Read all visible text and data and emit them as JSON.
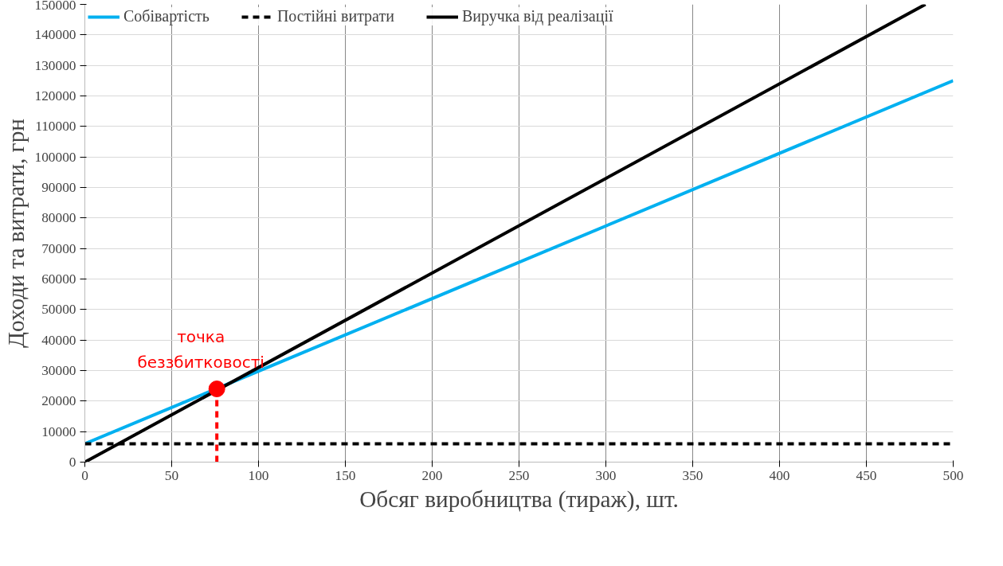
{
  "chart_data": {
    "type": "line",
    "xlabel": "Обсяг виробництва (тираж), шт.",
    "ylabel": "Доходи та витрати, грн",
    "xlim": [
      0,
      500
    ],
    "xticks": [
      0,
      50,
      100,
      150,
      200,
      250,
      300,
      350,
      400,
      450,
      500
    ],
    "ylim": [
      0,
      150000
    ],
    "yticks": [
      0,
      10000,
      20000,
      30000,
      40000,
      50000,
      60000,
      70000,
      80000,
      90000,
      100000,
      110000,
      120000,
      130000,
      140000,
      150000
    ],
    "grid": true,
    "legend": "top left",
    "marker": "none",
    "series": [
      {
        "name": "Собівартість",
        "color": "#00b0f0",
        "x": [
          0,
          500
        ],
        "values": [
          6000,
          125000
        ],
        "line_style": "solid"
      },
      {
        "name": "Постійні витрати",
        "color": "#000000",
        "x": [
          0,
          500
        ],
        "values": [
          6000,
          6000
        ],
        "line_style": "dashed"
      },
      {
        "name": "Виручка від реалізації",
        "color": "#000000",
        "x": [
          0,
          484
        ],
        "values": [
          0,
          150000
        ],
        "line_style": "solid"
      },
      {
        "type": "line",
        "color": "#ff0000",
        "x": [
          76,
          76
        ],
        "values": [
          0,
          24000
        ],
        "line_style": "dashed"
      },
      {
        "type": "scatter",
        "color": "#ff0000",
        "x": [
          76
        ],
        "values": [
          24000
        ],
        "marker": "circle"
      }
    ],
    "annotations": [
      {
        "text": "точка\nбеззбитковості",
        "x": 76,
        "y": 24000
      }
    ]
  }
}
